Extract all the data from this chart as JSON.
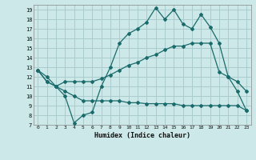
{
  "xlabel": "Humidex (Indice chaleur)",
  "bg_color": "#cce8e8",
  "grid_color": "#aacccc",
  "line_color": "#1a6b6b",
  "xlim": [
    -0.5,
    23.5
  ],
  "ylim": [
    7,
    19.5
  ],
  "yticks": [
    7,
    8,
    9,
    10,
    11,
    12,
    13,
    14,
    15,
    16,
    17,
    18,
    19
  ],
  "xticks": [
    0,
    1,
    2,
    3,
    4,
    5,
    6,
    7,
    8,
    9,
    10,
    11,
    12,
    13,
    14,
    15,
    16,
    17,
    18,
    19,
    20,
    21,
    22,
    23
  ],
  "line1_x": [
    0,
    1,
    2,
    3,
    4,
    5,
    6,
    7,
    8,
    9,
    10,
    11,
    12,
    13,
    14,
    15,
    16,
    17,
    18,
    19,
    20,
    21,
    22,
    23
  ],
  "line1_y": [
    12.7,
    12.0,
    11.0,
    10.0,
    7.2,
    8.0,
    8.3,
    11.0,
    13.0,
    15.5,
    16.5,
    17.0,
    17.7,
    19.2,
    18.0,
    19.0,
    17.5,
    17.0,
    18.5,
    17.2,
    15.5,
    12.0,
    11.5,
    10.5
  ],
  "line2_x": [
    0,
    1,
    2,
    3,
    4,
    5,
    6,
    7,
    8,
    9,
    10,
    11,
    12,
    13,
    14,
    15,
    16,
    17,
    18,
    19,
    20,
    21,
    22,
    23
  ],
  "line2_y": [
    12.7,
    11.5,
    11.0,
    11.5,
    11.5,
    11.5,
    11.5,
    11.8,
    12.2,
    12.7,
    13.2,
    13.5,
    14.0,
    14.3,
    14.8,
    15.2,
    15.2,
    15.5,
    15.5,
    15.5,
    12.5,
    12.0,
    10.5,
    8.5
  ],
  "line3_x": [
    0,
    1,
    2,
    3,
    4,
    5,
    6,
    7,
    8,
    9,
    10,
    11,
    12,
    13,
    14,
    15,
    16,
    17,
    18,
    19,
    20,
    21,
    22,
    23
  ],
  "line3_y": [
    12.7,
    11.5,
    11.0,
    10.5,
    10.0,
    9.5,
    9.5,
    9.5,
    9.5,
    9.5,
    9.3,
    9.3,
    9.2,
    9.2,
    9.2,
    9.2,
    9.0,
    9.0,
    9.0,
    9.0,
    9.0,
    9.0,
    9.0,
    8.5
  ]
}
